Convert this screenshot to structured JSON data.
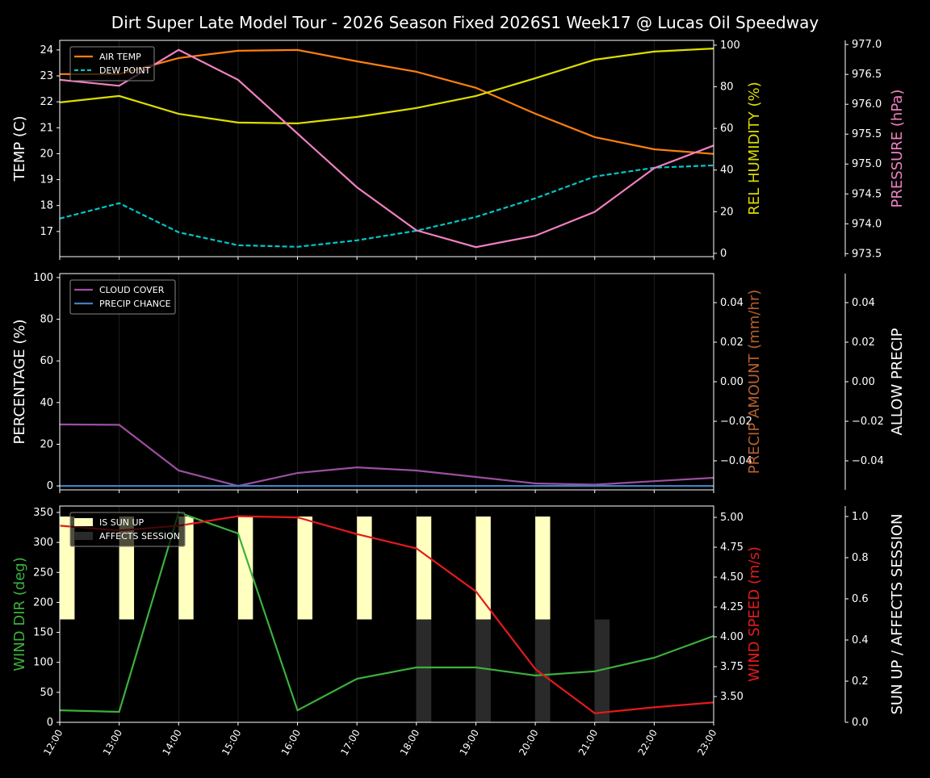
{
  "chart_data": [
    {
      "type": "line",
      "title": "Dirt Super Late Model Tour - 2026 Season Fixed 2026S1 Week17 @ Lucas Oil Speedway",
      "x": [
        "12:00",
        "13:00",
        "14:00",
        "15:00",
        "16:00",
        "17:00",
        "18:00",
        "19:00",
        "20:00",
        "21:00",
        "22:00",
        "23:00"
      ],
      "grid": "vertical",
      "legend_placement": "top-left",
      "axes": {
        "left": {
          "label": "TEMP (C)",
          "range": [
            16.03,
            24.37
          ],
          "ticks": [
            17,
            18,
            19,
            20,
            21,
            22,
            23,
            24
          ],
          "color": "#ffffff"
        },
        "right1": {
          "label": "REL HUMIDITY (%)",
          "range": [
            -1.6,
            102.3
          ],
          "ticks": [
            0,
            20,
            40,
            60,
            80,
            100
          ],
          "color": "#dddd00"
        },
        "right2": {
          "label": "PRESSURE (hPa)",
          "range": [
            973.45,
            977.07
          ],
          "ticks": [
            "973.5",
            "974.0",
            "974.5",
            "975.0",
            "975.5",
            "976.0",
            "976.5",
            "977.0"
          ],
          "color": "#f080c0"
        }
      },
      "series": [
        {
          "name": "AIR TEMP",
          "axis": "left",
          "color": "#ff7f0e",
          "dash": false,
          "legend": true,
          "values": [
            23.07,
            23.07,
            23.69,
            23.97,
            24.0,
            23.56,
            23.16,
            22.54,
            21.54,
            20.64,
            20.17,
            19.99
          ]
        },
        {
          "name": "DEW POINT",
          "axis": "left",
          "color": "#00c8c8",
          "dash": true,
          "legend": true,
          "values": [
            17.5,
            18.09,
            16.97,
            16.47,
            16.41,
            16.66,
            17.03,
            17.56,
            18.28,
            19.12,
            19.46,
            19.55
          ]
        },
        {
          "axis": "right1",
          "color": "#dddd00",
          "dash": false,
          "legend": false,
          "values": [
            72.5,
            75.6,
            67.0,
            62.8,
            62.4,
            65.5,
            69.8,
            75.6,
            84.1,
            93.0,
            96.9,
            98.4
          ]
        },
        {
          "axis": "right2",
          "color": "#f080c0",
          "dash": false,
          "legend": false,
          "values": [
            976.41,
            976.31,
            976.91,
            976.41,
            975.51,
            974.61,
            973.89,
            973.61,
            973.8,
            974.2,
            974.93,
            975.31
          ]
        }
      ]
    },
    {
      "type": "line",
      "x": [
        "12:00",
        "13:00",
        "14:00",
        "15:00",
        "16:00",
        "17:00",
        "18:00",
        "19:00",
        "20:00",
        "21:00",
        "22:00",
        "23:00"
      ],
      "grid": "vertical",
      "legend_placement": "top-left",
      "axes": {
        "left": {
          "label": "PERCENTAGE (%)",
          "range": [
            -1.9,
            101.9
          ],
          "ticks": [
            0,
            20,
            40,
            60,
            80,
            100
          ],
          "color": "#ffffff"
        },
        "right1": {
          "label": "PRECIP AMOUNT (mm/hr)",
          "range": [
            -0.0547,
            0.0547
          ],
          "ticks": [
            "−0.04",
            "−0.02",
            "0.00",
            "0.02",
            "0.04"
          ],
          "color": "#b5602e"
        },
        "right2": {
          "label": "ALLOW PRECIP",
          "range": [
            -0.0547,
            0.0547
          ],
          "ticks": [
            "−0.04",
            "−0.02",
            "0.00",
            "0.02",
            "0.04"
          ],
          "color": "#ffffff"
        }
      },
      "series": [
        {
          "name": "CLOUD COVER",
          "axis": "left",
          "color": "#9b4fa0",
          "dash": false,
          "legend": true,
          "values": [
            29.5,
            29.3,
            7.4,
            0,
            6.2,
            8.9,
            7.4,
            4.3,
            1.2,
            0.6,
            2.3,
            3.9
          ]
        },
        {
          "name": "PRECIP CHANCE",
          "axis": "left",
          "color": "#3f7fbf",
          "dash": false,
          "legend": true,
          "values": [
            0,
            0,
            0,
            0,
            0,
            0,
            0,
            0,
            0,
            0,
            0,
            0
          ]
        }
      ]
    },
    {
      "type": "line",
      "x": [
        "12:00",
        "13:00",
        "14:00",
        "15:00",
        "16:00",
        "17:00",
        "18:00",
        "19:00",
        "20:00",
        "21:00",
        "22:00",
        "23:00"
      ],
      "grid": "vertical",
      "legend_placement": "top-left",
      "axes": {
        "left": {
          "label": "WIND DIR (deg)",
          "range": [
            0,
            360.7
          ],
          "ticks": [
            0,
            50,
            100,
            150,
            200,
            250,
            300,
            350
          ],
          "color": "#3cb03c"
        },
        "right1": {
          "label": "WIND SPEED (m/s)",
          "range": [
            3.284,
            5.095
          ],
          "ticks": [
            "3.50",
            "3.75",
            "4.00",
            "4.25",
            "4.50",
            "4.75",
            "5.00"
          ],
          "color": "#e41a1c"
        },
        "right2": {
          "label": "SUN UP / AFFECTS SESSION",
          "range": [
            0,
            1.051
          ],
          "ticks": [
            "0.0",
            "0.2",
            "0.4",
            "0.6",
            "0.8",
            "1.0"
          ],
          "color": "#ffffff"
        }
      },
      "bars": [
        {
          "name": "IS SUN UP",
          "color": "#ffffc0",
          "base": 0.5,
          "height": 0.5,
          "values": [
            1,
            1,
            1,
            1,
            1,
            1,
            1,
            1,
            1,
            0,
            0,
            0
          ]
        },
        {
          "name": "AFFECTS SESSION",
          "color": "#2a2a2a",
          "base": 0,
          "height": 0.5,
          "values": [
            0,
            0,
            0,
            0,
            0,
            0,
            1,
            1,
            1,
            1,
            0,
            0
          ]
        }
      ],
      "series": [
        {
          "axis": "left",
          "color": "#3cb03c",
          "dash": false,
          "legend": false,
          "values": [
            20,
            17.5,
            350,
            315,
            20,
            72.7,
            91.5,
            91.5,
            78,
            85,
            107.7,
            144
          ]
        },
        {
          "axis": "right1",
          "color": "#e41a1c",
          "dash": false,
          "legend": false,
          "values": [
            4.93,
            4.89,
            4.93,
            5.01,
            5.0,
            4.86,
            4.74,
            4.38,
            3.73,
            3.36,
            3.41,
            3.45
          ]
        }
      ]
    }
  ]
}
